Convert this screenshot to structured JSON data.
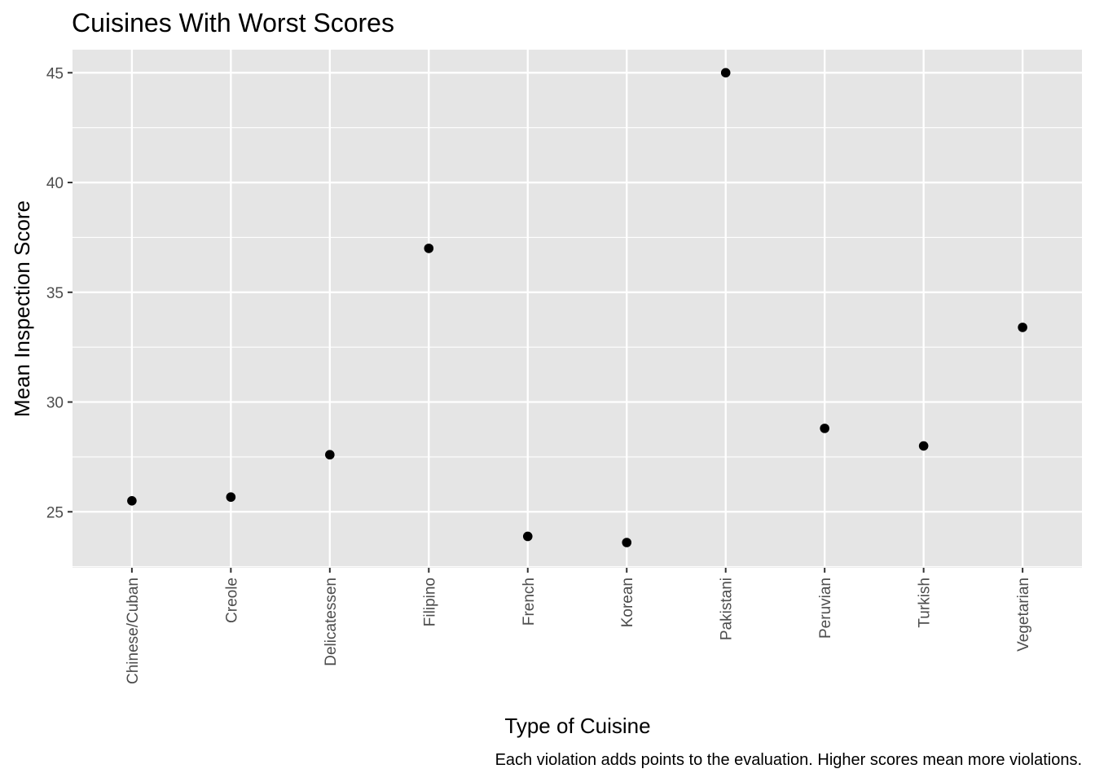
{
  "chart_data": {
    "type": "scatter",
    "title": "Cuisines With Worst Scores",
    "xlabel": "Type of Cuisine",
    "ylabel": "Mean Inspection Score",
    "caption": "Each violation adds points to the evaluation. Higher scores mean more violations.",
    "categories": [
      "Chinese/Cuban",
      "Creole",
      "Delicatessen",
      "Filipino",
      "French",
      "Korean",
      "Pakistani",
      "Peruvian",
      "Turkish",
      "Vegetarian"
    ],
    "values": [
      25.5,
      25.67,
      27.6,
      37.0,
      23.88,
      23.6,
      45.0,
      28.8,
      28.0,
      33.4
    ],
    "yticks": [
      25,
      30,
      35,
      40,
      45
    ],
    "ylim": [
      22.45,
      46.05
    ],
    "grid": true,
    "panel_background": "#e5e5e5",
    "grid_color": "#ffffff",
    "point_color": "#000000"
  }
}
